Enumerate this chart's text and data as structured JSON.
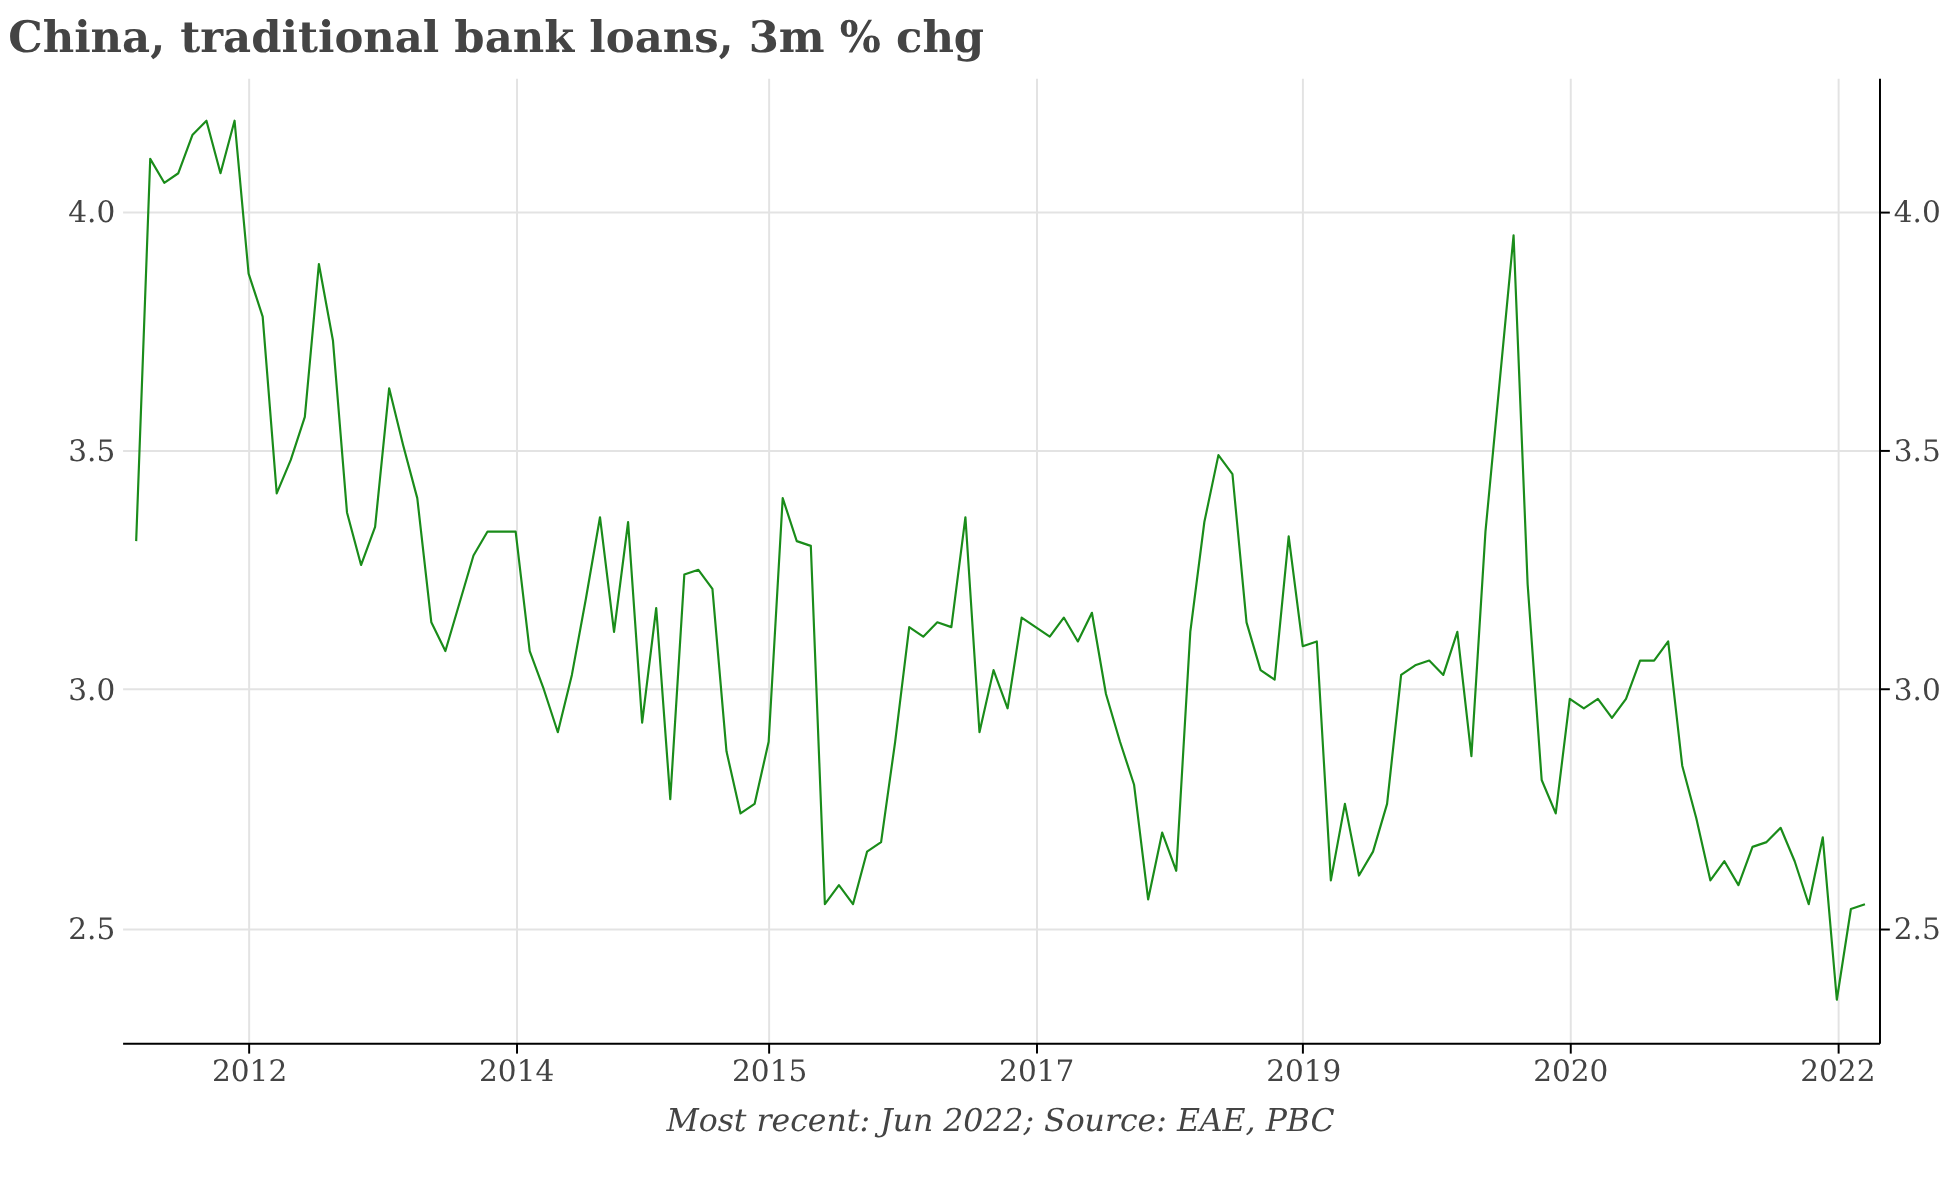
{
  "chart_data": {
    "type": "line",
    "title": "China, traditional bank loans, 3m % chg",
    "annotations": [
      "Most recent: Jun 2022; Source: EAE, PBC"
    ],
    "categories": [
      null,
      null,
      null,
      null,
      null,
      null,
      null,
      null,
      "2012",
      null,
      null,
      null,
      null,
      null,
      null,
      null,
      null,
      null,
      null,
      null,
      null,
      null,
      null,
      null,
      null,
      null,
      null,
      "2014",
      null,
      null,
      null,
      null,
      null,
      null,
      null,
      null,
      null,
      null,
      null,
      null,
      null,
      null,
      null,
      null,
      null,
      "2015",
      null,
      null,
      null,
      null,
      null,
      null,
      null,
      null,
      null,
      null,
      null,
      null,
      null,
      null,
      null,
      null,
      null,
      null,
      "2017",
      null,
      null,
      null,
      null,
      null,
      null,
      null,
      null,
      null,
      null,
      null,
      null,
      null,
      null,
      null,
      null,
      null,
      null,
      "2019",
      null,
      null,
      null,
      null,
      null,
      null,
      null,
      null,
      null,
      null,
      null,
      null,
      null,
      null,
      null,
      null,
      null,
      null,
      "2020",
      null,
      null,
      null,
      null,
      null,
      null,
      null,
      null,
      null,
      null,
      null,
      null,
      null,
      null,
      null,
      null,
      null,
      null,
      "2022",
      null,
      null
    ],
    "series": [
      {
        "color": "#1a8c1a",
        "values": [
          3.31,
          4.11,
          4.06,
          4.08,
          4.16,
          4.19,
          4.08,
          4.19,
          3.87,
          3.78,
          3.41,
          3.48,
          3.57,
          3.89,
          3.73,
          3.37,
          3.26,
          3.34,
          3.63,
          3.51,
          3.4,
          3.14,
          3.08,
          3.18,
          3.28,
          3.33,
          3.33,
          3.33,
          3.08,
          3.0,
          2.91,
          3.03,
          3.19,
          3.36,
          3.12,
          3.35,
          2.93,
          3.17,
          2.77,
          3.24,
          3.25,
          3.21,
          2.87,
          2.74,
          2.76,
          2.89,
          3.4,
          3.31,
          3.3,
          2.55,
          2.59,
          2.55,
          2.66,
          2.68,
          2.89,
          3.13,
          3.11,
          3.14,
          3.13,
          3.36,
          2.91,
          3.04,
          2.96,
          3.15,
          3.13,
          3.11,
          3.15,
          3.1,
          3.16,
          2.99,
          2.89,
          2.8,
          2.56,
          2.7,
          2.62,
          3.12,
          3.35,
          3.49,
          3.45,
          3.14,
          3.04,
          3.02,
          3.32,
          3.09,
          3.1,
          2.6,
          2.76,
          2.61,
          2.66,
          2.76,
          3.03,
          3.05,
          3.06,
          3.03,
          3.12,
          2.86,
          3.33,
          3.64,
          3.95,
          3.22,
          2.81,
          2.74,
          2.98,
          2.96,
          2.98,
          2.94,
          2.98,
          3.06,
          3.06,
          3.1,
          2.84,
          2.73,
          2.6,
          2.64,
          2.59,
          2.67,
          2.68,
          2.71,
          2.64,
          2.55,
          2.69,
          2.35,
          2.54,
          2.55
        ]
      }
    ],
    "ylim": [
      2.26,
      4.28
    ],
    "yticks": [
      2.5,
      {
        "value": 3,
        "label": "3.0"
      },
      3.5,
      {
        "value": 4,
        "label": "4.0"
      }
    ],
    "y2lim": [
      2.26,
      4.28
    ],
    "y2ticks": [
      2.5,
      {
        "value": 3,
        "label": "3.0"
      },
      3.5,
      {
        "value": 4,
        "label": "4.0"
      }
    ],
    "grid": true,
    "line_style": "solid",
    "marker": "none"
  }
}
